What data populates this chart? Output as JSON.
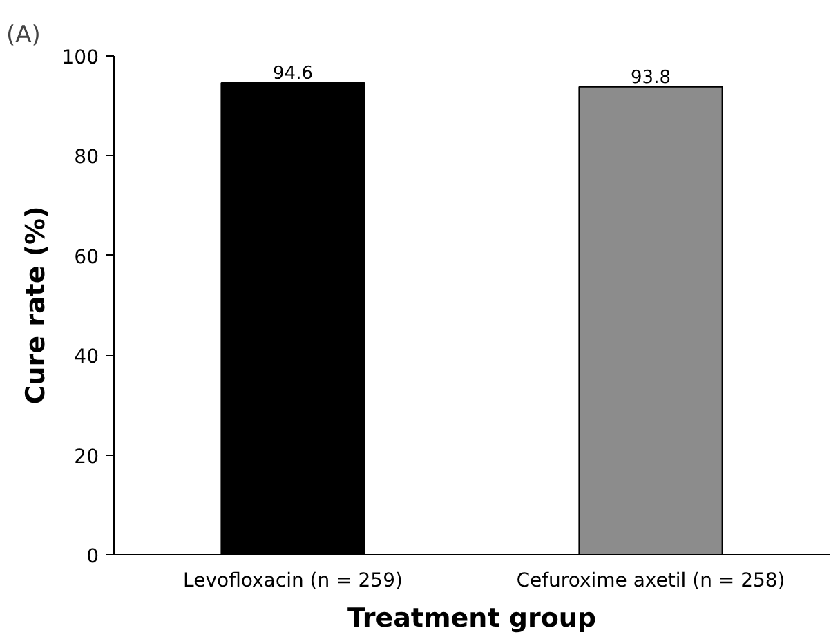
{
  "chart_data": {
    "type": "bar",
    "title": "(A)",
    "xlabel": "Treatment group",
    "ylabel": "Cure rate (%)",
    "categories": [
      "Levofloxacin (n = 259)",
      "Cefuroxime axetil (n = 258)"
    ],
    "values": [
      94.6,
      93.8
    ],
    "colors": [
      "#000000",
      "#8c8c8c"
    ],
    "ylim": [
      0,
      100
    ],
    "yticks": [
      0,
      20,
      40,
      60,
      80,
      100
    ],
    "grid": false,
    "data_labels": true
  }
}
